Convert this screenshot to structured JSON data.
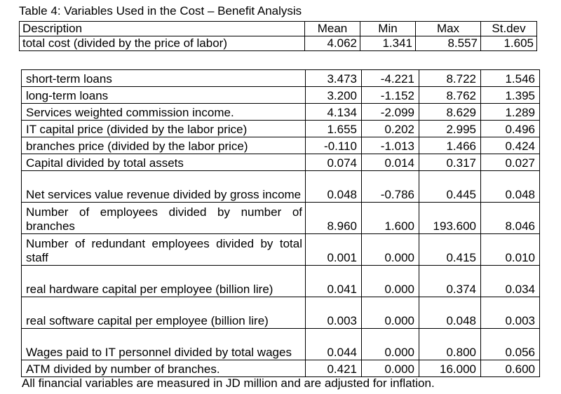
{
  "caption": "Table 4:  Variables Used in the Cost – Benefit Analysis",
  "header_table": {
    "columns": [
      "Description",
      "Mean",
      "Min",
      "Max",
      "St.dev"
    ],
    "row": [
      "total cost (divided by the price of labor)",
      "4.062",
      "1.341",
      "8.557",
      "1.605"
    ]
  },
  "variables": [
    {
      "desc": "short-term loans",
      "mean": "3.473",
      "min": "-4.221",
      "max": "8.722",
      "sd": "1.546"
    },
    {
      "desc": "long-term loans",
      "mean": "3.200",
      "min": "-1.152",
      "max": "8.762",
      "sd": "1.395"
    },
    {
      "desc": "Services weighted commission income.",
      "mean": "4.134",
      "min": "-2.099",
      "max": "8.629",
      "sd": "1.289"
    },
    {
      "desc": "IT capital price (divided by the labor price)",
      "mean": "1.655",
      "min": "0.202",
      "max": "2.995",
      "sd": "0.496"
    },
    {
      "desc": "branches price (divided by the labor price)",
      "mean": "-0.110",
      "min": "-1.013",
      "max": "1.466",
      "sd": "0.424"
    },
    {
      "desc": "Capital divided by total assets",
      "mean": "0.074",
      "min": "0.014",
      "max": "0.317",
      "sd": "0.027"
    },
    {
      "desc": "Net services value revenue divided by gross income",
      "mean": "0.048",
      "min": "-0.786",
      "max": "0.445",
      "sd": "0.048"
    },
    {
      "desc": "Number of employees divided by number of branches",
      "mean": "8.960",
      "min": "1.600",
      "max": "193.600",
      "sd": "8.046"
    },
    {
      "desc": "Number of redundant employees divided by total staff",
      "mean": "0.001",
      "min": "0.000",
      "max": "0.415",
      "sd": "0.010"
    },
    {
      "desc": "real hardware capital per employee (billion lire)",
      "mean": "0.041",
      "min": "0.000",
      "max": "0.374",
      "sd": "0.034"
    },
    {
      "desc": "real software capital per employee (billion lire)",
      "mean": "0.003",
      "min": "0.000",
      "max": "0.048",
      "sd": "0.003"
    },
    {
      "desc": "Wages paid to IT personnel divided by total wages",
      "mean": "0.044",
      "min": "0.000",
      "max": "0.800",
      "sd": "0.056"
    },
    {
      "desc": "ATM divided by number of branches.",
      "mean": "0.421",
      "min": "0.000",
      "max": "16.000",
      "sd": "0.600"
    }
  ],
  "footnote": "All financial variables are measured in JD million and are adjusted for inflation."
}
